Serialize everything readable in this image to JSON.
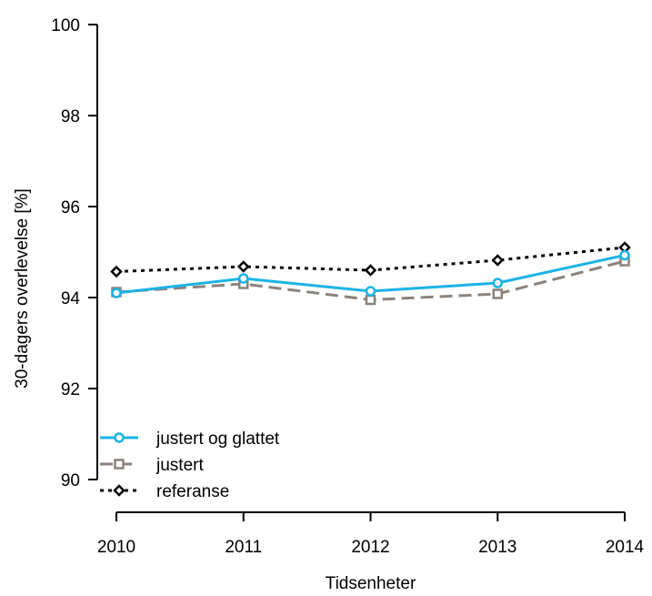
{
  "chart_data": {
    "type": "line",
    "title": "",
    "xlabel": "Tidsenheter",
    "ylabel": "30-dagers overlevelse [%]",
    "categories": [
      "2010",
      "2011",
      "2012",
      "2013",
      "2014"
    ],
    "x": [
      2010,
      2011,
      2012,
      2013,
      2014
    ],
    "ylim": [
      90,
      100
    ],
    "yticks": [
      "90",
      "92",
      "94",
      "96",
      "98",
      "100"
    ],
    "grid": false,
    "legend_position": "bottom-left",
    "series": [
      {
        "name": "justert og glattet",
        "values": [
          94.1,
          94.42,
          94.14,
          94.32,
          94.93
        ],
        "color": "#1bb3e6",
        "style": "solid",
        "marker": "circle"
      },
      {
        "name": "justert",
        "values": [
          94.12,
          94.3,
          93.95,
          94.08,
          94.8
        ],
        "color": "#8c827c",
        "style": "dashed",
        "marker": "square"
      },
      {
        "name": "referanse",
        "values": [
          94.57,
          94.68,
          94.6,
          94.82,
          95.1
        ],
        "color": "#000000",
        "style": "dotted",
        "marker": "diamond"
      }
    ]
  }
}
